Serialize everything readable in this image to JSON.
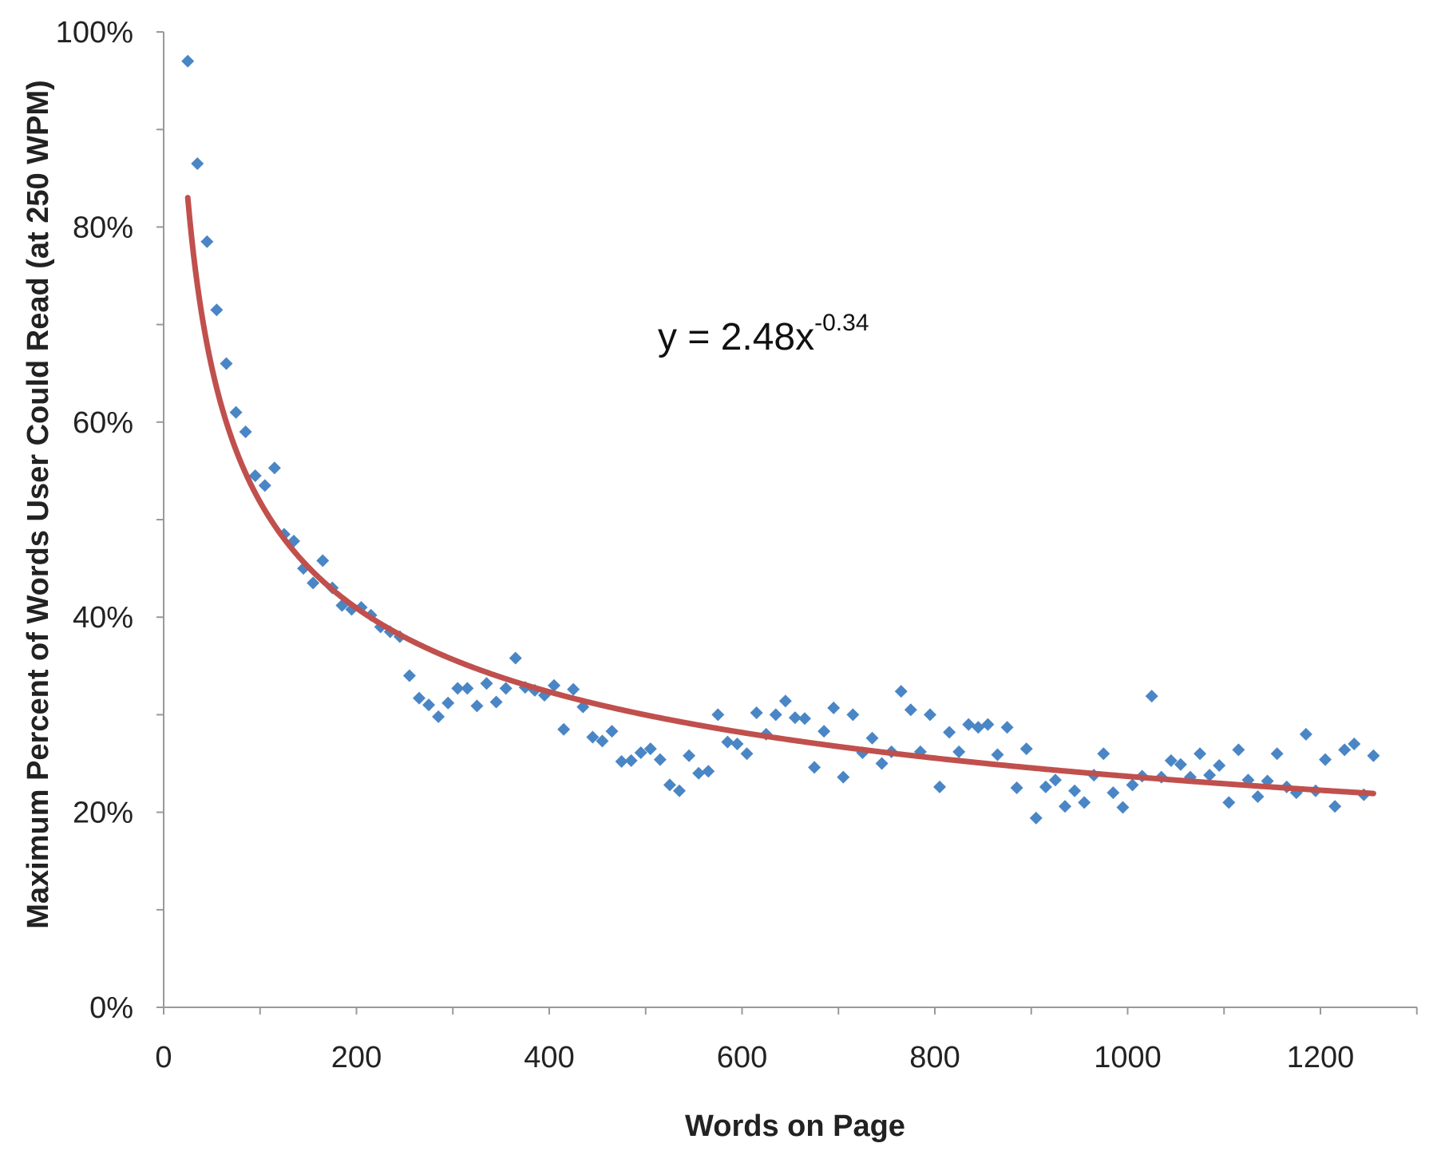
{
  "chart_data": {
    "type": "scatter",
    "title": "",
    "xlabel": "Words on Page",
    "ylabel": "Maximum Percent of Words User Could Read (at 250 WPM)",
    "xlim": [
      0,
      1300
    ],
    "ylim": [
      0,
      1.0
    ],
    "x_ticks": [
      0,
      200,
      400,
      600,
      800,
      1000,
      1200
    ],
    "x_tick_labels": [
      "0",
      "200",
      "400",
      "600",
      "800",
      "1000",
      "1200"
    ],
    "y_ticks": [
      0,
      0.2,
      0.4,
      0.6,
      0.8,
      1.0
    ],
    "y_tick_labels": [
      "0%",
      "20%",
      "40%",
      "60%",
      "80%",
      "100%"
    ],
    "grid": false,
    "legend": "none",
    "colors": {
      "points": "#4a86c5",
      "trendline": "#c0504d",
      "axis": "#999999"
    },
    "series": [
      {
        "marker": "diamond",
        "points": [
          [
            25,
            0.97
          ],
          [
            35,
            0.865
          ],
          [
            45,
            0.785
          ],
          [
            55,
            0.715
          ],
          [
            65,
            0.66
          ],
          [
            75,
            0.61
          ],
          [
            85,
            0.59
          ],
          [
            95,
            0.545
          ],
          [
            105,
            0.535
          ],
          [
            115,
            0.553
          ],
          [
            125,
            0.485
          ],
          [
            135,
            0.478
          ],
          [
            145,
            0.45
          ],
          [
            155,
            0.435
          ],
          [
            165,
            0.458
          ],
          [
            175,
            0.43
          ],
          [
            185,
            0.412
          ],
          [
            195,
            0.408
          ],
          [
            205,
            0.41
          ],
          [
            215,
            0.402
          ],
          [
            225,
            0.39
          ],
          [
            235,
            0.385
          ],
          [
            245,
            0.38
          ],
          [
            255,
            0.34
          ],
          [
            265,
            0.317
          ],
          [
            275,
            0.31
          ],
          [
            285,
            0.298
          ],
          [
            295,
            0.312
          ],
          [
            305,
            0.327
          ],
          [
            315,
            0.327
          ],
          [
            325,
            0.309
          ],
          [
            335,
            0.332
          ],
          [
            345,
            0.313
          ],
          [
            355,
            0.327
          ],
          [
            365,
            0.358
          ],
          [
            375,
            0.328
          ],
          [
            385,
            0.325
          ],
          [
            395,
            0.32
          ],
          [
            405,
            0.33
          ],
          [
            415,
            0.285
          ],
          [
            425,
            0.326
          ],
          [
            435,
            0.308
          ],
          [
            445,
            0.277
          ],
          [
            455,
            0.273
          ],
          [
            465,
            0.283
          ],
          [
            475,
            0.252
          ],
          [
            485,
            0.253
          ],
          [
            495,
            0.261
          ],
          [
            505,
            0.265
          ],
          [
            515,
            0.254
          ],
          [
            525,
            0.228
          ],
          [
            535,
            0.222
          ],
          [
            545,
            0.258
          ],
          [
            555,
            0.24
          ],
          [
            565,
            0.242
          ],
          [
            575,
            0.3
          ],
          [
            585,
            0.272
          ],
          [
            595,
            0.27
          ],
          [
            605,
            0.26
          ],
          [
            615,
            0.302
          ],
          [
            625,
            0.28
          ],
          [
            635,
            0.3
          ],
          [
            645,
            0.314
          ],
          [
            655,
            0.297
          ],
          [
            665,
            0.296
          ],
          [
            675,
            0.246
          ],
          [
            685,
            0.283
          ],
          [
            695,
            0.307
          ],
          [
            705,
            0.236
          ],
          [
            715,
            0.3
          ],
          [
            725,
            0.261
          ],
          [
            735,
            0.276
          ],
          [
            745,
            0.25
          ],
          [
            755,
            0.262
          ],
          [
            765,
            0.324
          ],
          [
            775,
            0.305
          ],
          [
            785,
            0.262
          ],
          [
            795,
            0.3
          ],
          [
            805,
            0.226
          ],
          [
            815,
            0.282
          ],
          [
            825,
            0.262
          ],
          [
            835,
            0.29
          ],
          [
            845,
            0.287
          ],
          [
            855,
            0.29
          ],
          [
            865,
            0.259
          ],
          [
            875,
            0.287
          ],
          [
            885,
            0.225
          ],
          [
            895,
            0.265
          ],
          [
            905,
            0.194
          ],
          [
            915,
            0.226
          ],
          [
            925,
            0.233
          ],
          [
            935,
            0.206
          ],
          [
            945,
            0.222
          ],
          [
            955,
            0.21
          ],
          [
            965,
            0.238
          ],
          [
            975,
            0.26
          ],
          [
            985,
            0.22
          ],
          [
            995,
            0.205
          ],
          [
            1005,
            0.228
          ],
          [
            1015,
            0.237
          ],
          [
            1025,
            0.319
          ],
          [
            1035,
            0.236
          ],
          [
            1045,
            0.253
          ],
          [
            1055,
            0.249
          ],
          [
            1065,
            0.236
          ],
          [
            1075,
            0.26
          ],
          [
            1085,
            0.238
          ],
          [
            1095,
            0.248
          ],
          [
            1105,
            0.21
          ],
          [
            1115,
            0.264
          ],
          [
            1125,
            0.233
          ],
          [
            1135,
            0.216
          ],
          [
            1145,
            0.232
          ],
          [
            1155,
            0.26
          ],
          [
            1165,
            0.226
          ],
          [
            1175,
            0.22
          ],
          [
            1185,
            0.28
          ],
          [
            1195,
            0.222
          ],
          [
            1205,
            0.254
          ],
          [
            1215,
            0.206
          ],
          [
            1225,
            0.264
          ],
          [
            1235,
            0.27
          ],
          [
            1245,
            0.218
          ],
          [
            1255,
            0.258
          ]
        ]
      }
    ],
    "trendline": {
      "type": "power",
      "a": 2.48,
      "b": -0.34,
      "x_range": [
        25,
        1255
      ],
      "equation_base": "y = 2.48x",
      "equation_exponent": "-0.34"
    }
  }
}
